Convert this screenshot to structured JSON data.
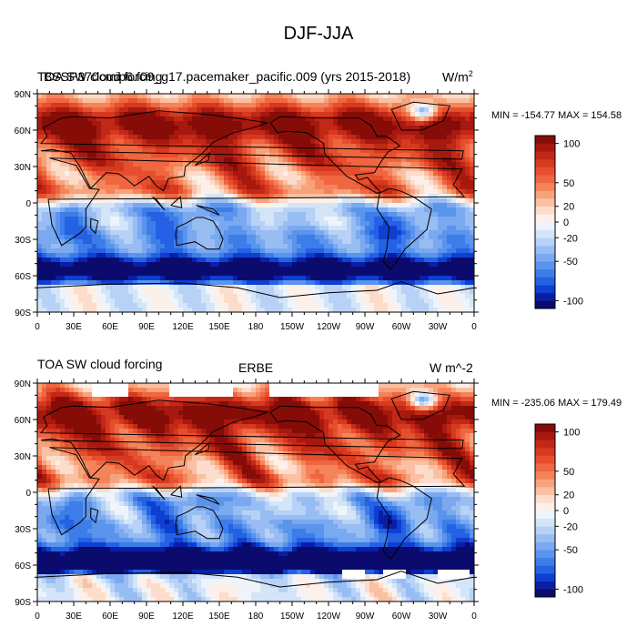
{
  "figure_title": "DJF-JJA",
  "chart_data": [
    {
      "type": "heatmap",
      "title_left": "TOA SW cloud forcing",
      "title_center": "BSSP370cmip6.f09_g17.pacemaker_pacific.009 (yrs 2015-2018)",
      "title_right": "W/m",
      "units_superscript": "2",
      "stats": "MIN = -154.77 MAX = 154.58",
      "x_ticks": [
        "0",
        "30E",
        "60E",
        "90E",
        "120E",
        "150E",
        "180",
        "150W",
        "120W",
        "90W",
        "60W",
        "30W",
        "0"
      ],
      "y_ticks": [
        "90N",
        "60N",
        "30N",
        "0",
        "30S",
        "60S",
        "90S"
      ],
      "xlim": [
        0,
        360
      ],
      "ylim": [
        -90,
        90
      ],
      "colorbar_levels": [
        -100,
        -90,
        -80,
        -70,
        -60,
        -50,
        -40,
        -30,
        -20,
        -10,
        0,
        10,
        20,
        30,
        40,
        50,
        60,
        70,
        80,
        90,
        100
      ],
      "colorbar_labels": [
        "100",
        "50",
        "20",
        "0",
        "-20",
        "-50",
        "-100"
      ]
    },
    {
      "type": "heatmap",
      "title_left": "TOA SW cloud forcing",
      "title_center": "ERBE",
      "title_right": "W m^-2",
      "stats": "MIN = -235.06 MAX = 179.49",
      "x_ticks": [
        "0",
        "30E",
        "60E",
        "90E",
        "120E",
        "150E",
        "180",
        "150W",
        "120W",
        "90W",
        "60W",
        "30W",
        "0"
      ],
      "y_ticks": [
        "90N",
        "60N",
        "30N",
        "0",
        "30S",
        "60S",
        "90S"
      ],
      "xlim": [
        0,
        360
      ],
      "ylim": [
        -90,
        90
      ],
      "colorbar_levels": [
        -100,
        -90,
        -80,
        -70,
        -60,
        -50,
        -40,
        -30,
        -20,
        -10,
        0,
        10,
        20,
        30,
        40,
        50,
        60,
        70,
        80,
        90,
        100
      ],
      "colorbar_labels": [
        "100",
        "50",
        "20",
        "0",
        "-20",
        "-50",
        "-100"
      ]
    }
  ]
}
